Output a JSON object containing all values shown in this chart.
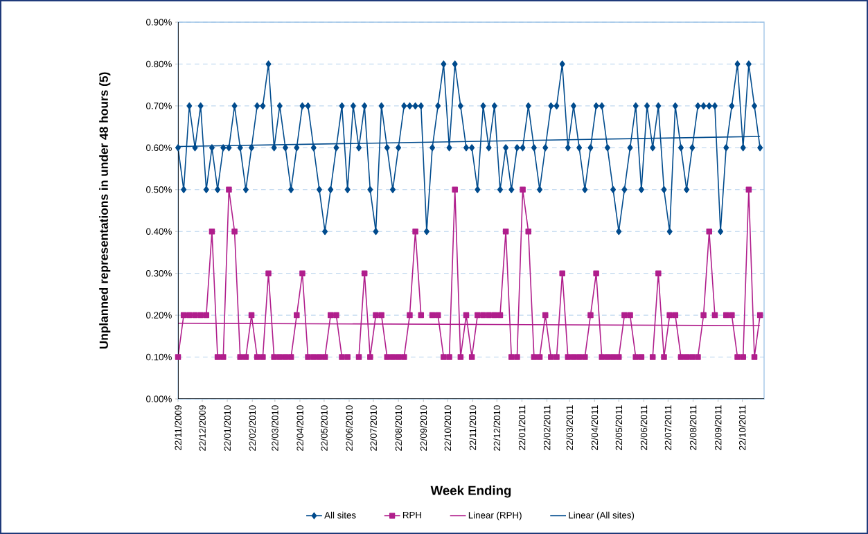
{
  "chart_data": {
    "type": "line",
    "xlabel": "Week Ending",
    "ylabel": "Unplanned representations in under 48 hours (5)",
    "x": [
      "2009-11-22",
      "2009-11-29",
      "2009-12-06",
      "2009-12-13",
      "2009-12-20",
      "2009-12-27",
      "2010-01-03",
      "2010-01-10",
      "2010-01-17",
      "2010-01-24",
      "2010-01-31",
      "2010-02-07",
      "2010-02-14",
      "2010-02-21",
      "2010-02-28",
      "2010-03-07",
      "2010-03-14",
      "2010-03-21",
      "2010-03-28",
      "2010-04-04",
      "2010-04-11",
      "2010-04-18",
      "2010-04-25",
      "2010-05-02",
      "2010-05-09",
      "2010-05-16",
      "2010-05-23",
      "2010-05-30",
      "2010-06-06",
      "2010-06-13",
      "2010-06-20",
      "2010-06-27",
      "2010-07-04",
      "2010-07-11",
      "2010-07-18",
      "2010-07-25",
      "2010-08-01",
      "2010-08-08",
      "2010-08-15",
      "2010-08-22",
      "2010-08-29",
      "2010-09-05",
      "2010-09-12",
      "2010-09-19",
      "2010-09-26",
      "2010-10-03",
      "2010-10-10",
      "2010-10-17",
      "2010-10-24",
      "2010-10-31",
      "2010-11-07",
      "2010-11-14",
      "2010-11-21",
      "2010-11-28",
      "2010-12-05",
      "2010-12-12",
      "2010-12-19",
      "2010-12-26",
      "2011-01-02",
      "2011-01-09",
      "2011-01-16",
      "2011-01-23",
      "2011-01-30",
      "2011-02-06",
      "2011-02-13",
      "2011-02-20",
      "2011-02-27",
      "2011-03-06",
      "2011-03-13",
      "2011-03-20",
      "2011-03-27",
      "2011-04-03",
      "2011-04-10",
      "2011-04-17",
      "2011-04-24",
      "2011-05-01",
      "2011-05-08",
      "2011-05-15",
      "2011-05-22",
      "2011-05-29",
      "2011-06-05",
      "2011-06-12",
      "2011-06-19",
      "2011-06-26",
      "2011-07-03",
      "2011-07-10",
      "2011-07-17",
      "2011-07-24",
      "2011-07-31",
      "2011-08-07",
      "2011-08-14",
      "2011-08-21",
      "2011-08-28",
      "2011-09-04",
      "2011-09-11",
      "2011-09-18",
      "2011-09-25",
      "2011-10-02",
      "2011-10-09",
      "2011-10-16",
      "2011-10-23",
      "2011-10-30",
      "2011-11-06",
      "2011-11-13"
    ],
    "series": [
      {
        "name": "All sites",
        "color": "#004b8d",
        "marker": "diamond",
        "values": [
          0.6,
          0.5,
          0.7,
          0.6,
          0.7,
          0.5,
          0.6,
          0.5,
          0.6,
          0.6,
          0.7,
          0.6,
          0.5,
          0.6,
          0.7,
          0.7,
          0.8,
          0.6,
          0.7,
          0.6,
          0.5,
          0.6,
          0.7,
          0.7,
          0.6,
          0.5,
          0.4,
          0.5,
          0.6,
          0.7,
          0.5,
          0.7,
          0.6,
          0.7,
          0.5,
          0.4,
          0.7,
          0.6,
          0.5,
          0.6,
          0.7,
          0.7,
          0.7,
          0.7,
          0.4,
          0.6,
          0.7,
          0.8,
          0.6,
          0.8,
          0.7,
          0.6,
          0.6,
          0.5,
          0.7,
          0.6,
          0.7,
          0.5,
          0.6,
          0.5,
          0.6,
          0.6,
          0.7,
          0.6,
          0.5,
          0.6,
          0.7,
          0.7,
          0.8,
          0.6,
          0.7,
          0.6,
          0.5,
          0.6,
          0.7,
          0.7,
          0.6,
          0.5,
          0.4,
          0.5,
          0.6,
          0.7,
          0.5,
          0.7,
          0.6,
          0.7,
          0.5,
          0.4,
          0.7,
          0.6,
          0.5,
          0.6,
          0.7,
          0.7,
          0.7,
          0.7,
          0.4,
          0.6,
          0.7,
          0.8,
          0.6,
          0.8,
          0.7,
          0.6
        ]
      },
      {
        "name": "RPH",
        "color": "#b01e8c",
        "marker": "square",
        "values": [
          0.1,
          0.2,
          0.2,
          0.2,
          0.2,
          0.2,
          0.4,
          0.1,
          0.1,
          0.5,
          0.4,
          0.1,
          0.1,
          0.2,
          0.1,
          0.1,
          0.3,
          0.1,
          0.1,
          0.1,
          0.1,
          0.2,
          0.3,
          0.1,
          0.1,
          0.1,
          0.1,
          0.2,
          0.2,
          0.1,
          0.1,
          null,
          0.1,
          0.3,
          0.1,
          0.2,
          0.2,
          0.1,
          0.1,
          0.1,
          0.1,
          0.2,
          0.4,
          0.2,
          null,
          0.2,
          0.2,
          0.1,
          0.1,
          0.5,
          0.1,
          0.2,
          0.1,
          0.2,
          0.2,
          0.2,
          0.2,
          0.2,
          0.4,
          0.1,
          0.1,
          0.5,
          0.4,
          0.1,
          0.1,
          0.2,
          0.1,
          0.1,
          0.3,
          0.1,
          0.1,
          0.1,
          0.1,
          0.2,
          0.3,
          0.1,
          0.1,
          0.1,
          0.1,
          0.2,
          0.2,
          0.1,
          0.1,
          null,
          0.1,
          0.3,
          0.1,
          0.2,
          0.2,
          0.1,
          0.1,
          0.1,
          0.1,
          0.2,
          0.4,
          0.2,
          null,
          0.2,
          0.2,
          0.1,
          0.1,
          0.5,
          0.1,
          0.2
        ]
      },
      {
        "name": "Linear (RPH)",
        "type": "line",
        "color": "#b01e8c",
        "marker": "none",
        "x": [
          "2009-11-22",
          "2011-11-13"
        ],
        "values": [
          0.181,
          0.175
        ]
      },
      {
        "name": "Linear (All sites)",
        "type": "line",
        "color": "#004b8d",
        "marker": "none",
        "x": [
          "2009-11-22",
          "2011-11-13"
        ],
        "values": [
          0.603,
          0.627
        ]
      }
    ],
    "xlim": [
      "2009-11-22",
      "2011-11-18"
    ],
    "xticks": [
      {
        "value": "2009-11-22",
        "label": "22/11/2009"
      },
      {
        "value": "2009-12-22",
        "label": "22/12/2009"
      },
      {
        "value": "2010-01-22",
        "label": "22/01/2010"
      },
      {
        "value": "2010-02-22",
        "label": "22/02/2010"
      },
      {
        "value": "2010-03-22",
        "label": "22/03/2010"
      },
      {
        "value": "2010-04-22",
        "label": "22/04/2010"
      },
      {
        "value": "2010-05-22",
        "label": "22/05/2010"
      },
      {
        "value": "2010-06-22",
        "label": "22/06/2010"
      },
      {
        "value": "2010-07-22",
        "label": "22/07/2010"
      },
      {
        "value": "2010-08-22",
        "label": "22/08/2010"
      },
      {
        "value": "2010-09-22",
        "label": "22/09/2010"
      },
      {
        "value": "2010-10-22",
        "label": "22/10/2010"
      },
      {
        "value": "2010-11-22",
        "label": "22/11/2010"
      },
      {
        "value": "2010-12-22",
        "label": "22/12/2010"
      },
      {
        "value": "2011-01-22",
        "label": "22/01/2011"
      },
      {
        "value": "2011-02-22",
        "label": "22/02/2011"
      },
      {
        "value": "2011-03-22",
        "label": "22/03/2011"
      },
      {
        "value": "2011-04-22",
        "label": "22/04/2011"
      },
      {
        "value": "2011-05-22",
        "label": "22/05/2011"
      },
      {
        "value": "2011-06-22",
        "label": "22/06/2011"
      },
      {
        "value": "2011-07-22",
        "label": "22/07/2011"
      },
      {
        "value": "2011-08-22",
        "label": "22/08/2011"
      },
      {
        "value": "2011-09-22",
        "label": "22/09/2011"
      },
      {
        "value": "2011-10-22",
        "label": "22/10/2011"
      }
    ],
    "ylim": [
      0,
      0.9
    ],
    "yticks": [
      {
        "value": 0,
        "label": "0.00%"
      },
      {
        "value": 0.1,
        "label": "0.10%"
      },
      {
        "value": 0.2,
        "label": "0.20%"
      },
      {
        "value": 0.3,
        "label": "0.30%"
      },
      {
        "value": 0.4,
        "label": "0.40%"
      },
      {
        "value": 0.5,
        "label": "0.50%"
      },
      {
        "value": 0.6,
        "label": "0.60%"
      },
      {
        "value": 0.7,
        "label": "0.70%"
      },
      {
        "value": 0.8,
        "label": "0.80%"
      },
      {
        "value": 0.9,
        "label": "0.90%"
      }
    ],
    "grid": "y",
    "legend": "bottom",
    "line_style": "solid"
  }
}
